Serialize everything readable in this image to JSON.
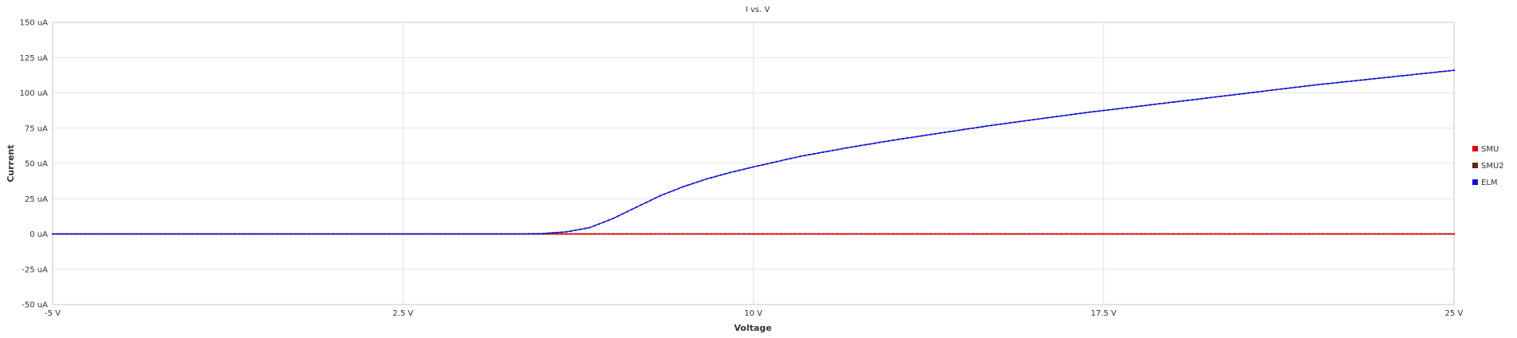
{
  "chart_data": {
    "type": "line",
    "title": "I vs. V",
    "xlabel": "Voltage",
    "ylabel": "Current",
    "xlim": [
      -5,
      25
    ],
    "ylim": [
      -50,
      150
    ],
    "x_ticks": [
      -5,
      2.5,
      10,
      17.5,
      25
    ],
    "x_tick_labels": [
      "-5 V",
      "2.5 V",
      "10 V",
      "17.5 V",
      "25 V"
    ],
    "y_ticks": [
      -50,
      -25,
      0,
      25,
      50,
      75,
      100,
      125,
      150
    ],
    "y_tick_labels": [
      "-50 uA",
      "-25 uA",
      "0 uA",
      "25 uA",
      "50 uA",
      "75 uA",
      "100 uA",
      "125 uA",
      "150 uA"
    ],
    "grid": true,
    "legend_position": "right",
    "series": [
      {
        "name": "SMU",
        "color": "#e00000",
        "x": [
          -5,
          25
        ],
        "y": [
          0,
          0
        ],
        "note_values": "constant 0 uA across sweep"
      },
      {
        "name": "SMU2",
        "color": "#5a2a0a",
        "x": [
          -5,
          25
        ],
        "y": [
          0,
          0
        ]
      },
      {
        "name": "ELM",
        "color": "#1010d0",
        "x": [
          -5,
          0,
          5,
          5.5,
          6,
          6.5,
          7,
          7.5,
          8,
          8.5,
          9,
          9.5,
          10,
          11,
          12,
          13,
          14,
          15,
          16,
          17,
          18,
          19,
          20,
          21,
          22,
          23,
          24,
          25
        ],
        "y": [
          0,
          0,
          0,
          0.3,
          1.5,
          4.5,
          11,
          19,
          27,
          33.5,
          39,
          43.5,
          47.5,
          55,
          61,
          66.5,
          71.5,
          76.5,
          81,
          85.5,
          89.5,
          93.5,
          97.5,
          101.5,
          105.5,
          109,
          112.5,
          116
        ]
      }
    ]
  }
}
